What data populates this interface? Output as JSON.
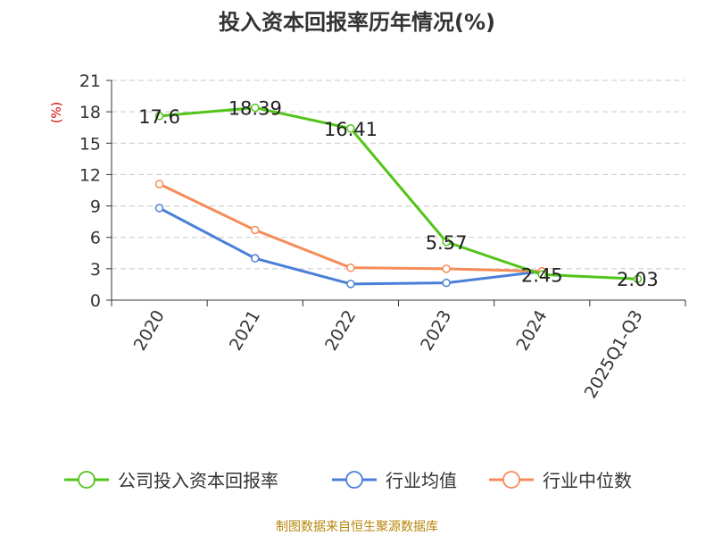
{
  "chart_data": {
    "type": "line",
    "title": "投入资本回报率历年情况(%)",
    "ylabel": "(%)",
    "categories": [
      "2020",
      "2021",
      "2022",
      "2023",
      "2024",
      "2025Q1-Q3"
    ],
    "ylim": [
      0,
      21
    ],
    "yticks": [
      0,
      3,
      6,
      9,
      12,
      15,
      18,
      21
    ],
    "grid": true,
    "legend_position": "bottom",
    "series": [
      {
        "name": "公司投入资本回报率",
        "color": "#52c41a",
        "values": [
          17.6,
          18.39,
          16.41,
          5.57,
          2.45,
          2.03
        ],
        "labels": [
          "17.6",
          "18.39",
          "16.41",
          "5.57",
          "2.45",
          "2.03"
        ]
      },
      {
        "name": "行业均值",
        "color": "#4a7fd8",
        "values": [
          8.8,
          4.0,
          1.55,
          1.65,
          2.75,
          null
        ],
        "labels": []
      },
      {
        "name": "行业中位数",
        "color": "#f58c5a",
        "values": [
          11.1,
          6.7,
          3.1,
          3.0,
          2.75,
          null
        ],
        "labels": []
      }
    ]
  },
  "footer": {
    "source": "制图数据来自恒生聚源数据库"
  }
}
